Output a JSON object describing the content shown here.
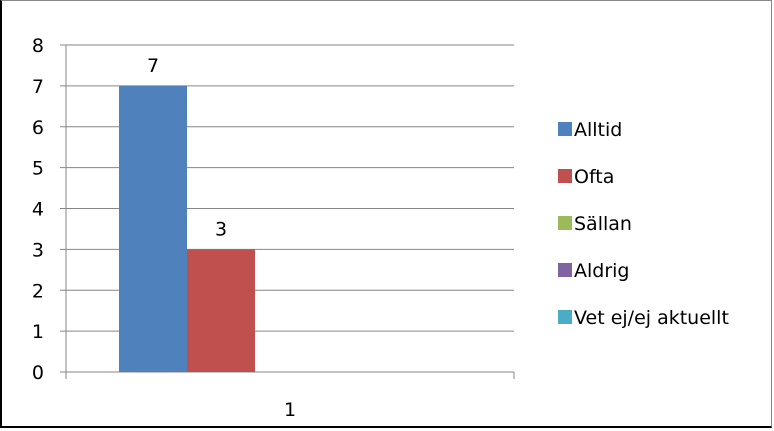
{
  "chart_data": {
    "type": "bar",
    "categories": [
      "1"
    ],
    "series": [
      {
        "name": "Alltid",
        "values": [
          7
        ],
        "color": "#4F81BD"
      },
      {
        "name": "Ofta",
        "values": [
          3
        ],
        "color": "#C0504D"
      },
      {
        "name": "Sällan",
        "values": [
          0
        ],
        "color": "#9BBB59"
      },
      {
        "name": "Aldrig",
        "values": [
          0
        ],
        "color": "#8064A2"
      },
      {
        "name": "Vet ej/ej aktuellt",
        "values": [
          0
        ],
        "color": "#4BACC6"
      }
    ],
    "data_labels": [
      "7",
      "3",
      "",
      "",
      ""
    ],
    "title": "",
    "xlabel": "",
    "ylabel": "",
    "ylim": [
      0,
      8
    ],
    "yticks": [
      "0",
      "1",
      "2",
      "3",
      "4",
      "5",
      "6",
      "7",
      "8"
    ],
    "grid": true,
    "legend_position": "right"
  }
}
